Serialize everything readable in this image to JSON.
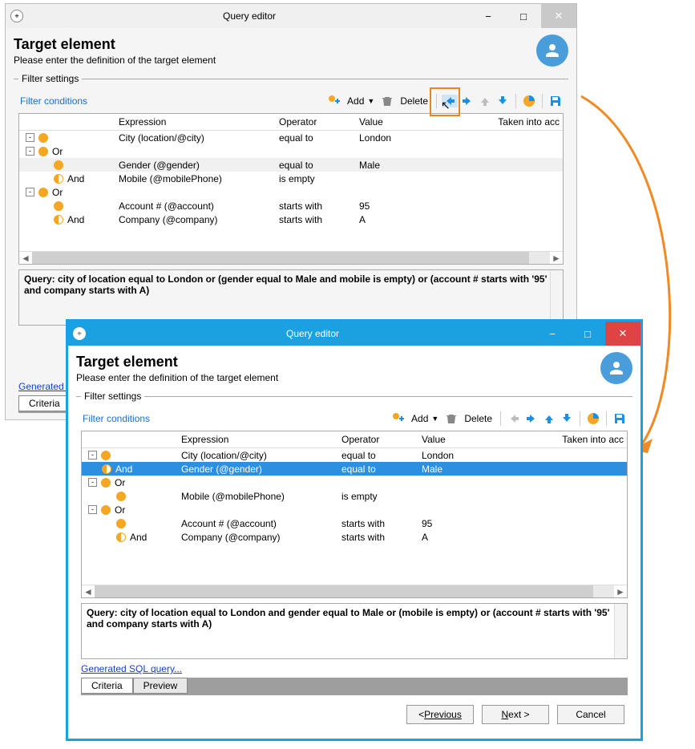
{
  "arrow_color": "#f08a24",
  "win1": {
    "title": "Query editor",
    "heading": "Target element",
    "subheading": "Please enter the definition of the target element",
    "legend": "Filter settings",
    "fc_label": "Filter conditions",
    "add_label": "Add",
    "delete_label": "Delete",
    "columns": {
      "expr": "Expression",
      "op": "Operator",
      "val": "Value",
      "acc": "Taken into acc"
    },
    "rows": [
      {
        "indent": 0,
        "exp": "-",
        "dot": "solid",
        "label": "",
        "expr": "City (location/@city)",
        "op": "equal to",
        "val": "London",
        "sel": ""
      },
      {
        "indent": 0,
        "exp": "-",
        "dot": "solid",
        "label": "Or",
        "expr": "",
        "op": "",
        "val": "",
        "sel": ""
      },
      {
        "indent": 1,
        "exp": "",
        "dot": "solid",
        "label": "",
        "expr": "Gender (@gender)",
        "op": "equal to",
        "val": "Male",
        "sel": "gray"
      },
      {
        "indent": 1,
        "exp": "",
        "dot": "half",
        "label": "And",
        "expr": "Mobile (@mobilePhone)",
        "op": "is empty",
        "val": "",
        "sel": ""
      },
      {
        "indent": 0,
        "exp": "-",
        "dot": "solid",
        "label": "Or",
        "expr": "",
        "op": "",
        "val": "",
        "sel": ""
      },
      {
        "indent": 1,
        "exp": "",
        "dot": "solid",
        "label": "",
        "expr": "Account # (@account)",
        "op": "starts with",
        "val": "95",
        "sel": ""
      },
      {
        "indent": 1,
        "exp": "",
        "dot": "half",
        "label": "And",
        "expr": "Company (@company)",
        "op": "starts with",
        "val": "A",
        "sel": ""
      }
    ],
    "query": "Query: city of location equal to London or (gender equal to Male and mobile is empty) or (account # starts with '95' and company starts with A)",
    "genlink": "Generated S",
    "tab_active": "Criteria",
    "arrows": {
      "left": "active-highlight",
      "right": "active",
      "up": "disabled",
      "down": "active"
    }
  },
  "win2": {
    "title": "Query editor",
    "heading": "Target element",
    "subheading": "Please enter the definition of the target element",
    "legend": "Filter settings",
    "fc_label": "Filter conditions",
    "add_label": "Add",
    "delete_label": "Delete",
    "columns": {
      "expr": "Expression",
      "op": "Operator",
      "val": "Value",
      "acc": "Taken into acc"
    },
    "rows": [
      {
        "indent": 0,
        "exp": "-",
        "dot": "solid",
        "label": "",
        "expr": "City (location/@city)",
        "op": "equal to",
        "val": "London",
        "sel": ""
      },
      {
        "indent": 0,
        "exp": "",
        "dot": "half",
        "label": "And",
        "expr": "Gender (@gender)",
        "op": "equal to",
        "val": "Male",
        "sel": "blue"
      },
      {
        "indent": 0,
        "exp": "-",
        "dot": "solid",
        "label": "Or",
        "expr": "",
        "op": "",
        "val": "",
        "sel": ""
      },
      {
        "indent": 1,
        "exp": "",
        "dot": "solid",
        "label": "",
        "expr": "Mobile (@mobilePhone)",
        "op": "is empty",
        "val": "",
        "sel": ""
      },
      {
        "indent": 0,
        "exp": "-",
        "dot": "solid",
        "label": "Or",
        "expr": "",
        "op": "",
        "val": "",
        "sel": ""
      },
      {
        "indent": 1,
        "exp": "",
        "dot": "solid",
        "label": "",
        "expr": "Account # (@account)",
        "op": "starts with",
        "val": "95",
        "sel": ""
      },
      {
        "indent": 1,
        "exp": "",
        "dot": "half",
        "label": "And",
        "expr": "Company (@company)",
        "op": "starts with",
        "val": "A",
        "sel": ""
      }
    ],
    "query": "Query: city of location equal to London and gender equal to Male or (mobile is empty) or (account # starts with '95' and company starts with A)",
    "genlink": "Generated SQL query...",
    "tabs": {
      "active": "Criteria",
      "other": "Preview"
    },
    "arrows": {
      "left": "disabled",
      "right": "active",
      "up": "active",
      "down": "active"
    },
    "buttons": {
      "prev": "Previous",
      "next": "Next >",
      "cancel": "Cancel"
    }
  }
}
